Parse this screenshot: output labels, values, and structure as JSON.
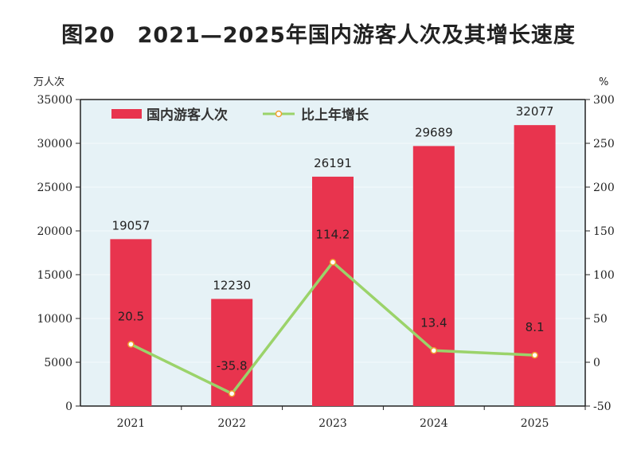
{
  "chart_data": {
    "type": "bar",
    "title": "图20　2021—2025年国内游客人次及其增长速度",
    "categories": [
      "2021",
      "2022",
      "2023",
      "2024",
      "2025"
    ],
    "series": [
      {
        "name": "国内游客人次",
        "type": "bar",
        "axis": "left",
        "values": [
          19057,
          12230,
          26191,
          29689,
          32077
        ],
        "labels": [
          "19057",
          "12230",
          "26191",
          "29689",
          "32077"
        ],
        "color": "#e8344e"
      },
      {
        "name": "比上年增长",
        "type": "line",
        "axis": "right",
        "values": [
          20.5,
          -35.8,
          114.2,
          13.4,
          8.1
        ],
        "labels": [
          "20.5",
          "-35.8",
          "114.2",
          "13.4",
          "8.1"
        ],
        "color": "#9bd36a",
        "marker_color": "#f0a030"
      }
    ],
    "ylabel_left": "万人次",
    "ylabel_right": "%",
    "ylim_left": [
      0,
      35000
    ],
    "yticks_left": [
      "0",
      "5000",
      "10000",
      "15000",
      "20000",
      "25000",
      "30000",
      "35000"
    ],
    "ylim_right": [
      -50,
      300
    ],
    "yticks_right": [
      "-50",
      "0",
      "50",
      "100",
      "150",
      "200",
      "250",
      "300"
    ],
    "legend": "top-left",
    "background": "#e6f2f6"
  }
}
